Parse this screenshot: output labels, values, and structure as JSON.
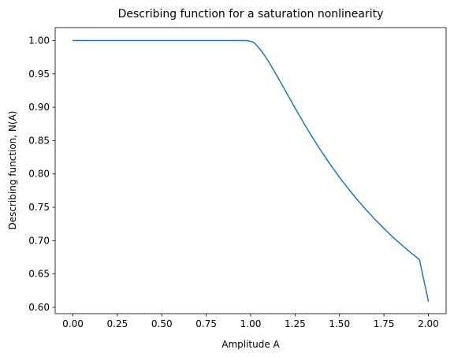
{
  "chart_data": {
    "type": "line",
    "title": "Describing function for a saturation nonlinearity",
    "xlabel": "Amplitude A",
    "ylabel": "Describing function, N(A)",
    "xlim": [
      -0.1,
      2.1
    ],
    "ylim": [
      0.5905,
      1.0195
    ],
    "grid": false,
    "x_ticks": [
      "0.00",
      "0.25",
      "0.50",
      "0.75",
      "1.00",
      "1.25",
      "1.50",
      "1.75",
      "2.00"
    ],
    "y_ticks": [
      "0.60",
      "0.65",
      "0.70",
      "0.75",
      "0.80",
      "0.85",
      "0.90",
      "0.95",
      "1.00"
    ],
    "series": [
      {
        "color": "#1f77b4",
        "x": [
          0.0,
          0.2,
          0.4,
          0.6,
          0.8,
          0.98,
          1.0,
          1.02,
          1.04,
          1.06,
          1.08,
          1.1,
          1.15,
          1.2,
          1.25,
          1.3,
          1.35,
          1.4,
          1.45,
          1.5,
          1.55,
          1.6,
          1.65,
          1.7,
          1.75,
          1.8,
          1.85,
          1.9,
          1.95,
          2.0
        ],
        "y": [
          1.0,
          1.0,
          1.0,
          1.0,
          1.0,
          1.0,
          0.9989,
          0.9968,
          0.9911,
          0.9845,
          0.977,
          0.969,
          0.9464,
          0.9226,
          0.8989,
          0.8759,
          0.8539,
          0.8331,
          0.8135,
          0.795,
          0.7777,
          0.7614,
          0.7461,
          0.7317,
          0.7182,
          0.7054,
          0.6935,
          0.6822,
          0.6715,
          0.6093
        ]
      }
    ]
  }
}
